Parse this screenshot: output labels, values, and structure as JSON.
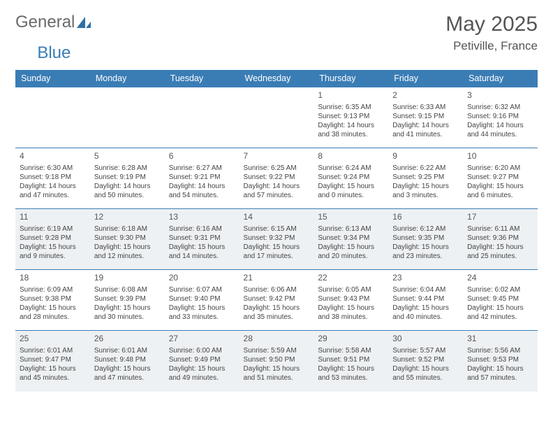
{
  "brand": {
    "word1": "General",
    "word2": "Blue"
  },
  "title": "May 2025",
  "location": "Petiville, France",
  "colors": {
    "header_bg": "#3a7db5",
    "header_text": "#ffffff",
    "cell_border": "#3a7db5",
    "shaded_bg": "#eef1f3",
    "body_text": "#444444",
    "title_text": "#555555",
    "logo_gray": "#6a6a6a",
    "logo_blue": "#3a7db5"
  },
  "fonts": {
    "title_size_pt": 30,
    "location_size_pt": 17,
    "header_size_pt": 12.5,
    "cell_size_pt": 10
  },
  "weekdays": [
    "Sunday",
    "Monday",
    "Tuesday",
    "Wednesday",
    "Thursday",
    "Friday",
    "Saturday"
  ],
  "weeks": [
    [
      {
        "blank": true
      },
      {
        "blank": true
      },
      {
        "blank": true
      },
      {
        "blank": true
      },
      {
        "day": "1",
        "sunrise": "Sunrise: 6:35 AM",
        "sunset": "Sunset: 9:13 PM",
        "daylight": "Daylight: 14 hours and 38 minutes."
      },
      {
        "day": "2",
        "sunrise": "Sunrise: 6:33 AM",
        "sunset": "Sunset: 9:15 PM",
        "daylight": "Daylight: 14 hours and 41 minutes."
      },
      {
        "day": "3",
        "sunrise": "Sunrise: 6:32 AM",
        "sunset": "Sunset: 9:16 PM",
        "daylight": "Daylight: 14 hours and 44 minutes."
      }
    ],
    [
      {
        "day": "4",
        "sunrise": "Sunrise: 6:30 AM",
        "sunset": "Sunset: 9:18 PM",
        "daylight": "Daylight: 14 hours and 47 minutes."
      },
      {
        "day": "5",
        "sunrise": "Sunrise: 6:28 AM",
        "sunset": "Sunset: 9:19 PM",
        "daylight": "Daylight: 14 hours and 50 minutes."
      },
      {
        "day": "6",
        "sunrise": "Sunrise: 6:27 AM",
        "sunset": "Sunset: 9:21 PM",
        "daylight": "Daylight: 14 hours and 54 minutes."
      },
      {
        "day": "7",
        "sunrise": "Sunrise: 6:25 AM",
        "sunset": "Sunset: 9:22 PM",
        "daylight": "Daylight: 14 hours and 57 minutes."
      },
      {
        "day": "8",
        "sunrise": "Sunrise: 6:24 AM",
        "sunset": "Sunset: 9:24 PM",
        "daylight": "Daylight: 15 hours and 0 minutes."
      },
      {
        "day": "9",
        "sunrise": "Sunrise: 6:22 AM",
        "sunset": "Sunset: 9:25 PM",
        "daylight": "Daylight: 15 hours and 3 minutes."
      },
      {
        "day": "10",
        "sunrise": "Sunrise: 6:20 AM",
        "sunset": "Sunset: 9:27 PM",
        "daylight": "Daylight: 15 hours and 6 minutes."
      }
    ],
    [
      {
        "day": "11",
        "shaded": true,
        "sunrise": "Sunrise: 6:19 AM",
        "sunset": "Sunset: 9:28 PM",
        "daylight": "Daylight: 15 hours and 9 minutes."
      },
      {
        "day": "12",
        "shaded": true,
        "sunrise": "Sunrise: 6:18 AM",
        "sunset": "Sunset: 9:30 PM",
        "daylight": "Daylight: 15 hours and 12 minutes."
      },
      {
        "day": "13",
        "shaded": true,
        "sunrise": "Sunrise: 6:16 AM",
        "sunset": "Sunset: 9:31 PM",
        "daylight": "Daylight: 15 hours and 14 minutes."
      },
      {
        "day": "14",
        "shaded": true,
        "sunrise": "Sunrise: 6:15 AM",
        "sunset": "Sunset: 9:32 PM",
        "daylight": "Daylight: 15 hours and 17 minutes."
      },
      {
        "day": "15",
        "shaded": true,
        "sunrise": "Sunrise: 6:13 AM",
        "sunset": "Sunset: 9:34 PM",
        "daylight": "Daylight: 15 hours and 20 minutes."
      },
      {
        "day": "16",
        "shaded": true,
        "sunrise": "Sunrise: 6:12 AM",
        "sunset": "Sunset: 9:35 PM",
        "daylight": "Daylight: 15 hours and 23 minutes."
      },
      {
        "day": "17",
        "shaded": true,
        "sunrise": "Sunrise: 6:11 AM",
        "sunset": "Sunset: 9:36 PM",
        "daylight": "Daylight: 15 hours and 25 minutes."
      }
    ],
    [
      {
        "day": "18",
        "sunrise": "Sunrise: 6:09 AM",
        "sunset": "Sunset: 9:38 PM",
        "daylight": "Daylight: 15 hours and 28 minutes."
      },
      {
        "day": "19",
        "sunrise": "Sunrise: 6:08 AM",
        "sunset": "Sunset: 9:39 PM",
        "daylight": "Daylight: 15 hours and 30 minutes."
      },
      {
        "day": "20",
        "sunrise": "Sunrise: 6:07 AM",
        "sunset": "Sunset: 9:40 PM",
        "daylight": "Daylight: 15 hours and 33 minutes."
      },
      {
        "day": "21",
        "sunrise": "Sunrise: 6:06 AM",
        "sunset": "Sunset: 9:42 PM",
        "daylight": "Daylight: 15 hours and 35 minutes."
      },
      {
        "day": "22",
        "sunrise": "Sunrise: 6:05 AM",
        "sunset": "Sunset: 9:43 PM",
        "daylight": "Daylight: 15 hours and 38 minutes."
      },
      {
        "day": "23",
        "sunrise": "Sunrise: 6:04 AM",
        "sunset": "Sunset: 9:44 PM",
        "daylight": "Daylight: 15 hours and 40 minutes."
      },
      {
        "day": "24",
        "sunrise": "Sunrise: 6:02 AM",
        "sunset": "Sunset: 9:45 PM",
        "daylight": "Daylight: 15 hours and 42 minutes."
      }
    ],
    [
      {
        "day": "25",
        "shaded": true,
        "sunrise": "Sunrise: 6:01 AM",
        "sunset": "Sunset: 9:47 PM",
        "daylight": "Daylight: 15 hours and 45 minutes."
      },
      {
        "day": "26",
        "shaded": true,
        "sunrise": "Sunrise: 6:01 AM",
        "sunset": "Sunset: 9:48 PM",
        "daylight": "Daylight: 15 hours and 47 minutes."
      },
      {
        "day": "27",
        "shaded": true,
        "sunrise": "Sunrise: 6:00 AM",
        "sunset": "Sunset: 9:49 PM",
        "daylight": "Daylight: 15 hours and 49 minutes."
      },
      {
        "day": "28",
        "shaded": true,
        "sunrise": "Sunrise: 5:59 AM",
        "sunset": "Sunset: 9:50 PM",
        "daylight": "Daylight: 15 hours and 51 minutes."
      },
      {
        "day": "29",
        "shaded": true,
        "sunrise": "Sunrise: 5:58 AM",
        "sunset": "Sunset: 9:51 PM",
        "daylight": "Daylight: 15 hours and 53 minutes."
      },
      {
        "day": "30",
        "shaded": true,
        "sunrise": "Sunrise: 5:57 AM",
        "sunset": "Sunset: 9:52 PM",
        "daylight": "Daylight: 15 hours and 55 minutes."
      },
      {
        "day": "31",
        "shaded": true,
        "sunrise": "Sunrise: 5:56 AM",
        "sunset": "Sunset: 9:53 PM",
        "daylight": "Daylight: 15 hours and 57 minutes."
      }
    ]
  ]
}
